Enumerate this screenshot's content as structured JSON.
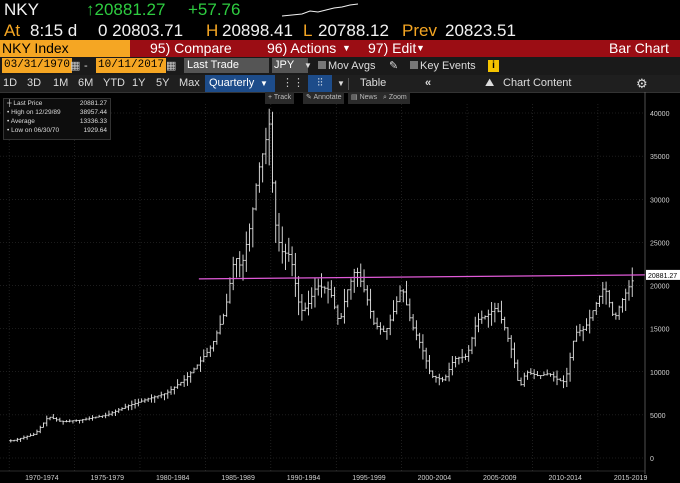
{
  "quote": {
    "ticker": "NKY",
    "last": "↑20881.27",
    "change": "+57.76",
    "at_label": "At",
    "time": "8:15 d",
    "open": "0 20803.71",
    "high_label": "H",
    "high": "20898.41",
    "low_label": "L",
    "low": "20788.12",
    "prev_label": "Prev",
    "prev": "20823.51"
  },
  "toolbar": {
    "security": "NKY Index",
    "compare": "95) Compare",
    "actions": "96) Actions",
    "edit": "97) Edit",
    "chart_type": "Bar Chart"
  },
  "controls": {
    "start_date": "03/31/1970",
    "end_date": "10/11/2017",
    "field": "Last Trade",
    "currency": "JPY",
    "mov_avgs": "Mov Avgs",
    "key_events": "Key Events",
    "key_events_icon": "i"
  },
  "ranges": {
    "items": [
      "1D",
      "3D",
      "1M",
      "6M",
      "YTD",
      "1Y",
      "5Y",
      "Max"
    ],
    "period": "Quarterly",
    "table": "Table",
    "chart_content": "Chart Content"
  },
  "chart_tools": {
    "track": "Track",
    "annotate": "Annotate",
    "news": "News",
    "zoom": "Zoom"
  },
  "legend": {
    "rows": [
      {
        "label": "Last Price",
        "value": "20881.27"
      },
      {
        "label": "High on 12/29/89",
        "value": "38957.44"
      },
      {
        "label": "Average",
        "value": "13336.33"
      },
      {
        "label": "Low on 06/30/70",
        "value": "1929.64"
      }
    ]
  },
  "colors": {
    "background": "#000000",
    "orange": "#f5a623",
    "green": "#2ecc40",
    "red_bar": "#9b0d14",
    "bars": "#e8e8e8",
    "resistance_line": "#e05ad8"
  },
  "chart_data": {
    "type": "bar",
    "subtype": "ohlc",
    "period": "Quarterly",
    "ylim": [
      0,
      40000
    ],
    "yticks": [
      0,
      5000,
      10000,
      15000,
      20000,
      25000,
      30000,
      35000,
      40000
    ],
    "xticks": [
      "1970-1974",
      "1975-1979",
      "1980-1984",
      "1985-1989",
      "1990-1994",
      "1995-1999",
      "2000-2004",
      "2005-2009",
      "2010-2014",
      "2015-2019"
    ],
    "grid": true,
    "last_price_label": "20881.27",
    "horizontal_line": {
      "value": 20881.27,
      "x_start": 1984.5
    },
    "series": [
      {
        "x": [
          1970.25,
          1972.0,
          1973.0,
          1974.0,
          1975.5,
          1977.5,
          1979.0,
          1980.5,
          1982.0,
          1983.5,
          1984.5,
          1985.5,
          1986.5,
          1987.25,
          1987.75,
          1988.5,
          1989.0,
          1989.5,
          1989.9,
          1990.25,
          1990.75,
          1991.5,
          1992.25,
          1992.75,
          1993.5,
          1994.5,
          1995.25,
          1995.75,
          1996.5,
          1997.25,
          1997.9,
          1998.75,
          1999.5,
          2000.0,
          2000.75,
          2001.5,
          2002.25,
          2003.25,
          2004.0,
          2005.0,
          2005.75,
          2006.5,
          2007.25,
          2007.9,
          2008.5,
          2009.0,
          2009.5,
          2010.5,
          2011.25,
          2012.0,
          2012.5,
          2013.25,
          2014.0,
          2014.75,
          2015.5,
          2016.25,
          2016.75,
          2017.25,
          2017.75
        ],
        "values": [
          2000,
          2800,
          4800,
          4200,
          4400,
          5000,
          6000,
          6800,
          7500,
          9200,
          11000,
          13000,
          17000,
          23500,
          22000,
          27500,
          33000,
          36000,
          38900,
          28000,
          24000,
          23500,
          17000,
          17500,
          20000,
          19500,
          15500,
          19000,
          22000,
          19000,
          15500,
          14500,
          17500,
          20000,
          15500,
          13000,
          9500,
          9000,
          11500,
          11800,
          16000,
          16500,
          17500,
          15000,
          12000,
          8000,
          10000,
          9500,
          9800,
          9000,
          8800,
          14500,
          15000,
          17500,
          20000,
          16000,
          18000,
          19500,
          20881
        ]
      }
    ]
  }
}
